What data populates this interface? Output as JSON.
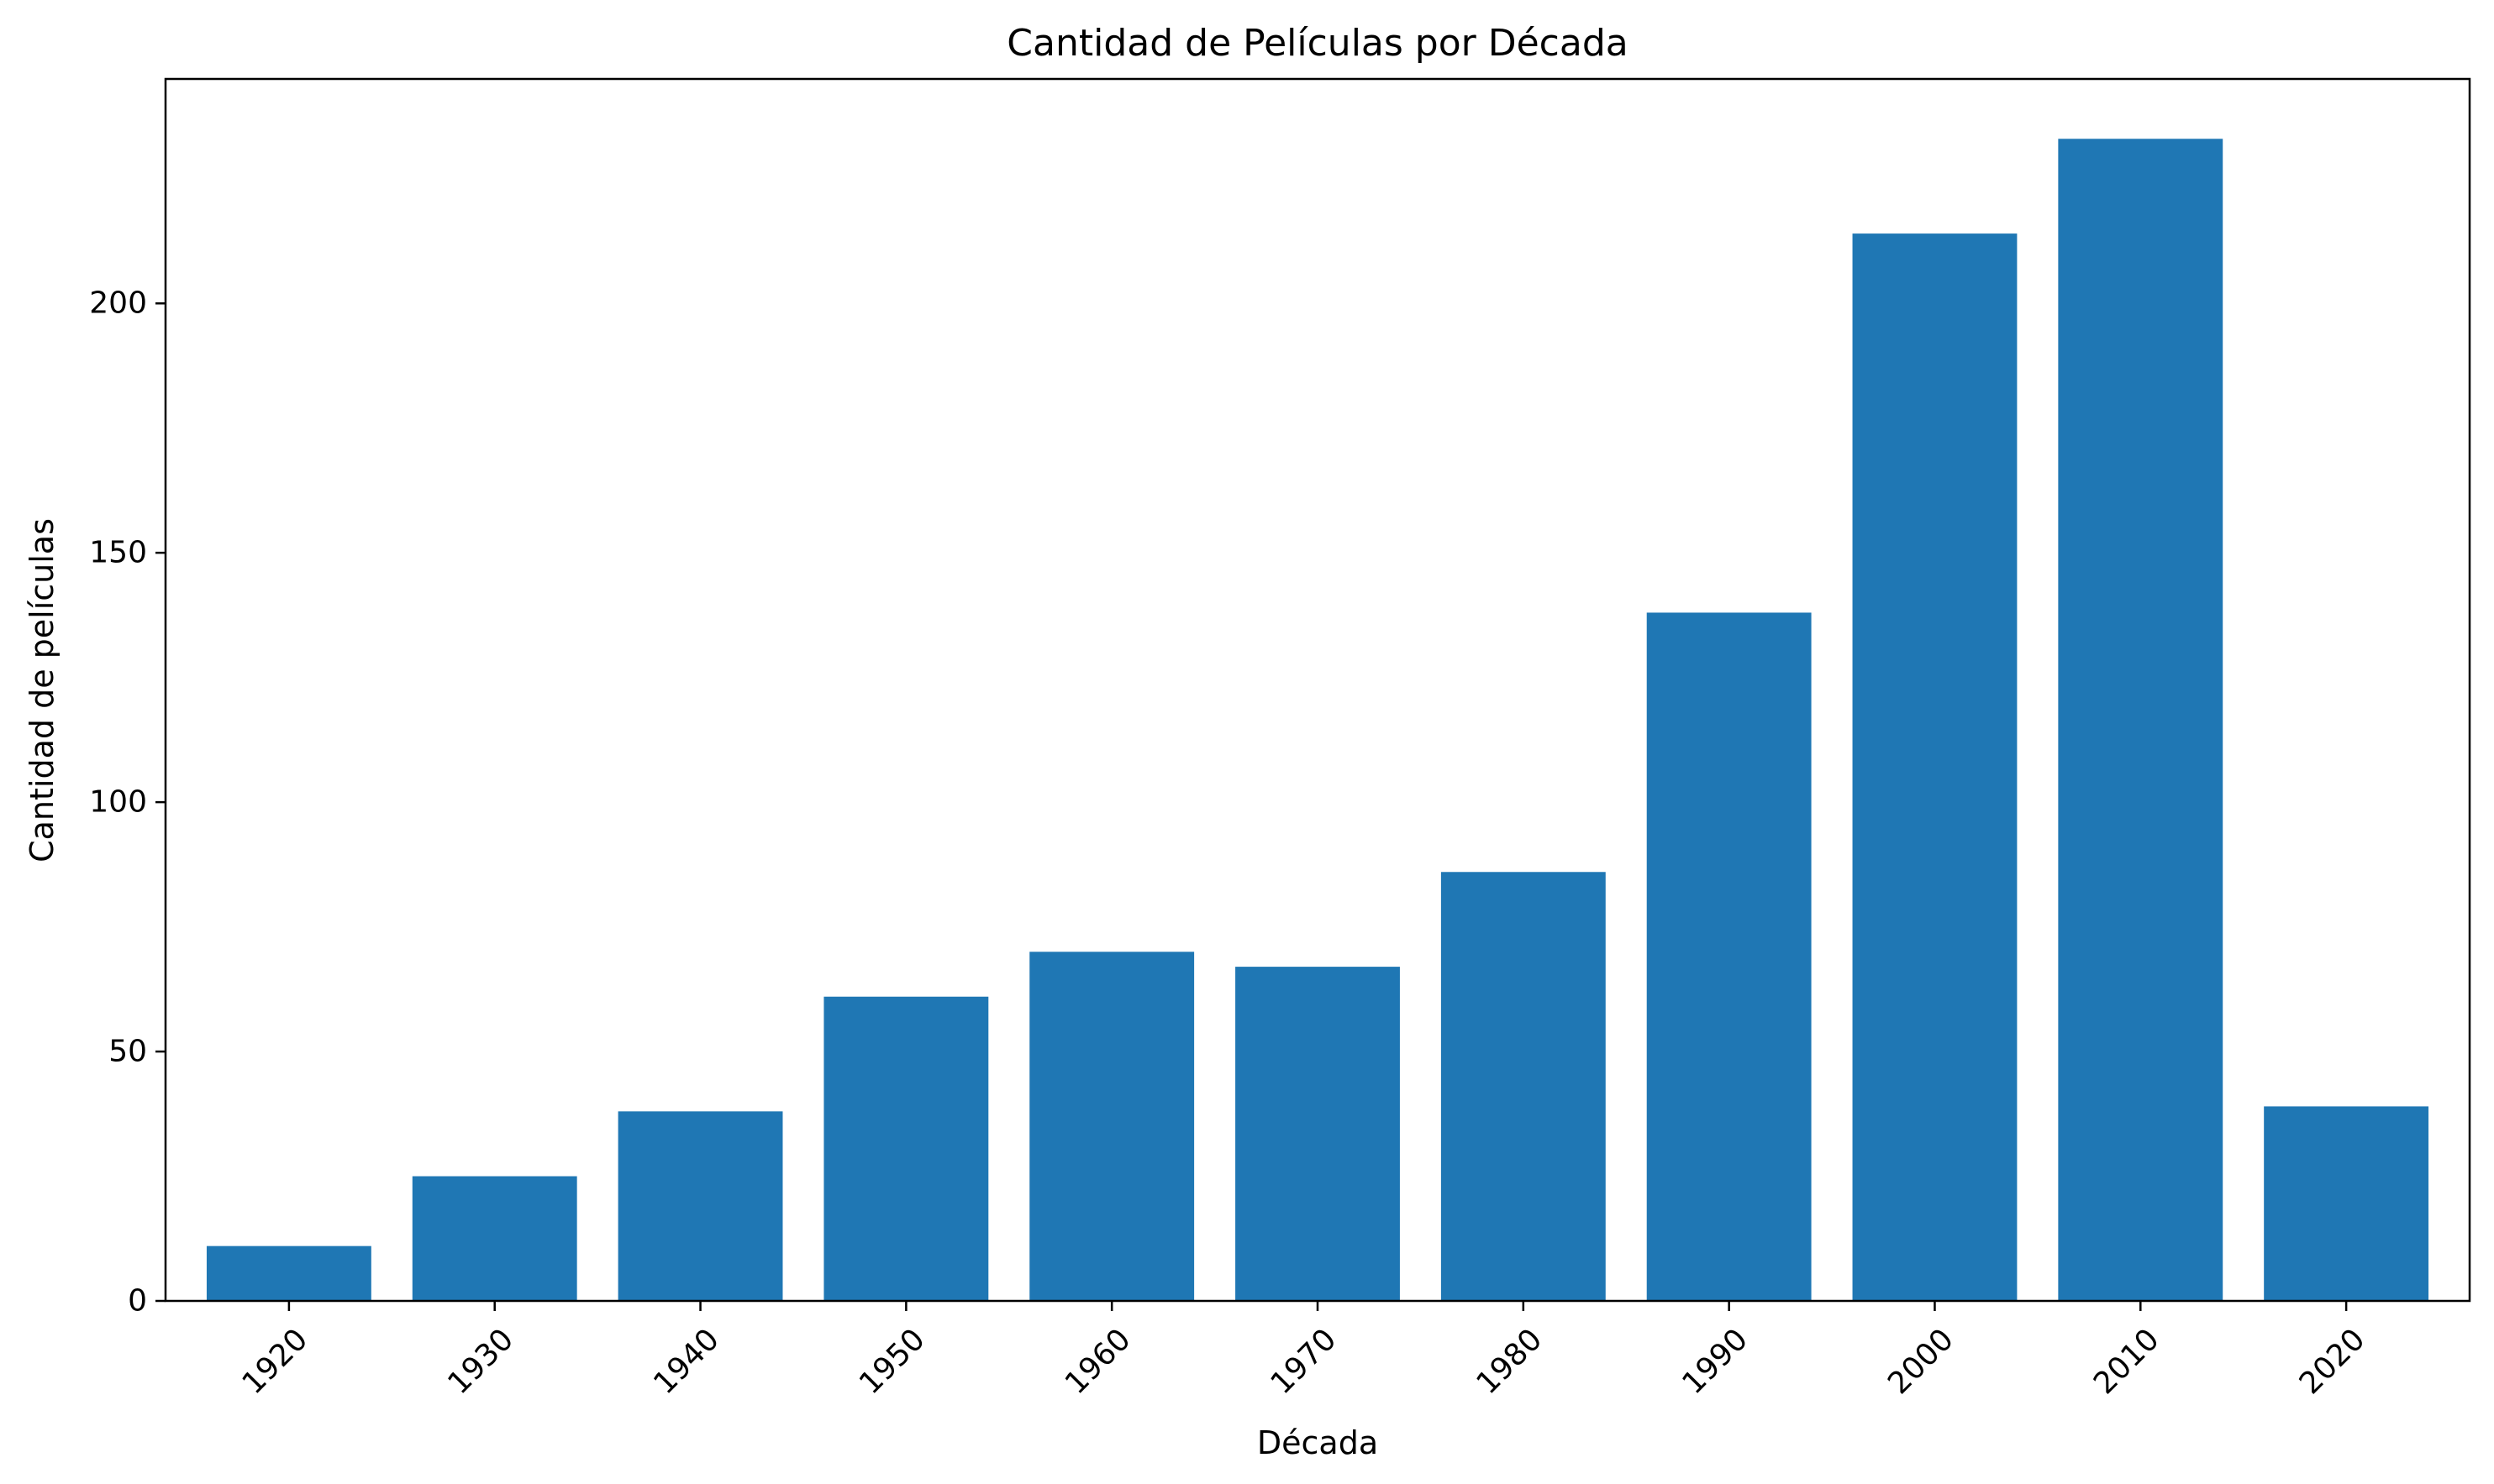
{
  "chart_data": {
    "type": "bar",
    "title": "Cantidad de Películas por Década",
    "xlabel": "Década",
    "ylabel": "Cantidad de películas",
    "categories": [
      "1920",
      "1930",
      "1940",
      "1950",
      "1960",
      "1970",
      "1980",
      "1990",
      "2000",
      "2010",
      "2020"
    ],
    "values": [
      11,
      25,
      38,
      61,
      70,
      67,
      86,
      138,
      214,
      233,
      39
    ],
    "ylim": [
      0,
      245
    ],
    "yticks": [
      0,
      50,
      100,
      150,
      200
    ],
    "grid": false,
    "bar_color": "#1f77b4"
  }
}
